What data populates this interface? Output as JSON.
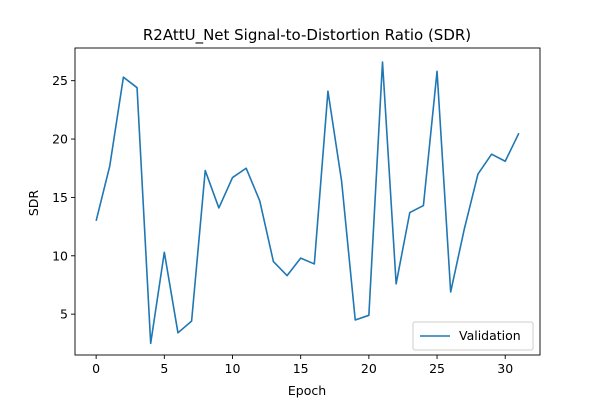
{
  "chart_data": {
    "type": "line",
    "title": "R2AttU_Net Signal-to-Distortion Ratio (SDR)",
    "xlabel": "Epoch",
    "ylabel": "SDR",
    "xlim": [
      -1.55,
      32.55
    ],
    "ylim": [
      1.5,
      27.8
    ],
    "xticks": [
      0,
      5,
      10,
      15,
      20,
      25,
      30
    ],
    "yticks": [
      5,
      10,
      15,
      20,
      25
    ],
    "grid": false,
    "legend_position": "lower-right",
    "series": [
      {
        "name": "Validation",
        "color": "#1f77b4",
        "x": [
          0,
          1,
          2,
          3,
          4,
          5,
          6,
          7,
          8,
          9,
          10,
          11,
          12,
          13,
          14,
          15,
          16,
          17,
          18,
          19,
          20,
          21,
          22,
          23,
          24,
          25,
          26,
          27,
          28,
          29,
          30,
          31
        ],
        "y": [
          13.0,
          17.7,
          25.3,
          24.4,
          2.5,
          10.3,
          3.4,
          4.4,
          17.3,
          14.1,
          16.7,
          17.5,
          14.7,
          9.5,
          8.3,
          9.8,
          9.3,
          24.1,
          16.4,
          4.5,
          4.9,
          26.6,
          7.6,
          13.7,
          14.3,
          25.8,
          6.9,
          12.3,
          17.0,
          18.7,
          18.1,
          20.5
        ]
      }
    ]
  }
}
